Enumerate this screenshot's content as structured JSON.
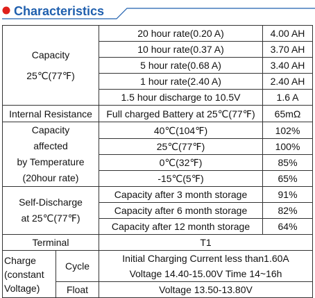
{
  "header": {
    "title": "Characteristics"
  },
  "table": {
    "capacity": {
      "label": [
        "Capacity",
        "25℃(77℉)"
      ],
      "rows": [
        [
          "20 hour rate(0.20 A)",
          "4.00 AH"
        ],
        [
          "10 hour rate(0.37 A)",
          "3.70 AH"
        ],
        [
          "5 hour rate(0.68 A)",
          "3.40 AH"
        ],
        [
          "1 hour rate(2.40 A)",
          "2.40 AH"
        ],
        [
          "1.5 hour discharge to 10.5V",
          "1.6 A"
        ]
      ]
    },
    "internal_resistance": {
      "label": "Internal Resistance",
      "condition": "Full charged Battery at 25℃(77℉)",
      "value": "65mΩ"
    },
    "temperature": {
      "label": [
        "Capacity",
        "affected",
        "by Temperature",
        "(20hour rate)"
      ],
      "rows": [
        [
          "40℃(104℉)",
          "102%"
        ],
        [
          "25℃(77℉)",
          "100%"
        ],
        [
          "0℃(32℉)",
          "85%"
        ],
        [
          "-15℃(5℉)",
          "65%"
        ]
      ]
    },
    "self_discharge": {
      "label": [
        "Self-Discharge",
        "at 25℃(77℉)"
      ],
      "rows": [
        [
          "Capacity after 3 month storage",
          "91%"
        ],
        [
          "Capacity after 6 month storage",
          "82%"
        ],
        [
          "Capacity after 12 month storage",
          "64%"
        ]
      ]
    },
    "terminal": {
      "label": "Terminal",
      "value": "T1"
    },
    "charge": {
      "label": [
        "Charge",
        "(constant",
        "Voltage)"
      ],
      "cycle": {
        "label": "Cycle",
        "lines": [
          "Initial Charging Current less than1.60A",
          "Voltage 14.40-15.00V  Time 14~16h"
        ]
      },
      "float": {
        "label": "Float",
        "value": "Voltage 13.50-13.80V"
      }
    }
  }
}
